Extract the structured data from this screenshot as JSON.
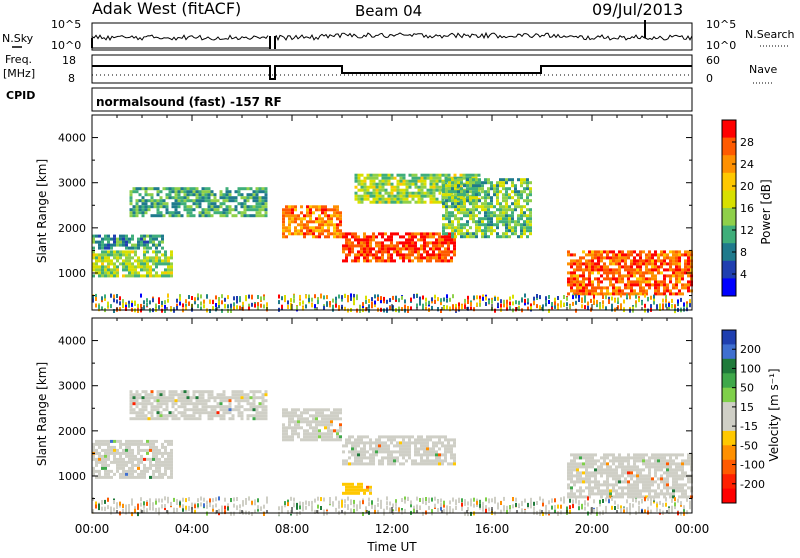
{
  "header": {
    "station": "Adak West (fitACF)",
    "beam": "Beam 04",
    "date": "09/Jul/2013",
    "cpid_label": "CPID",
    "program": "normalsound (fast) -157 RF"
  },
  "strips": {
    "nsky_label": "N.Sky",
    "nsky_ticks": [
      "10^5",
      "10^0"
    ],
    "nsearch_label": "N.Search",
    "nsearch_ticks": [
      "10^5",
      "10^0"
    ],
    "freq_label_1": "Freq.",
    "freq_label_2": "[MHz]",
    "freq_ticks": [
      "18",
      "8"
    ],
    "nave_label": "Nave",
    "nave_ticks": [
      "60",
      "0"
    ]
  },
  "axes": {
    "ylabel": "Slant Range [km]",
    "xlabel": "Time UT",
    "y_ticks": [
      "4000",
      "3000",
      "2000",
      "1000"
    ],
    "x_ticks": [
      "00:00",
      "04:00",
      "08:00",
      "12:00",
      "16:00",
      "20:00",
      "00:00"
    ]
  },
  "colorbars": {
    "power": {
      "label": "Power [dB]",
      "ticks": [
        "28",
        "24",
        "20",
        "16",
        "12",
        "8",
        "4"
      ],
      "colors": [
        "#ff0000",
        "#ff5a00",
        "#ff9000",
        "#ffc800",
        "#d8e000",
        "#8fd04a",
        "#3fae7a",
        "#1f7a8c",
        "#1f3fb0",
        "#0000ff"
      ]
    },
    "velocity": {
      "label": "Velocity [m s⁻¹]",
      "ticks": [
        "200",
        "100",
        "50",
        "15",
        "-15",
        "-50",
        "-100",
        "-200"
      ],
      "colors": [
        "#1f3fb0",
        "#3f6fd0",
        "#1f7a3a",
        "#3fa84a",
        "#7fd04a",
        "#cfcfc6",
        "#cfcfc6",
        "#ffc800",
        "#ff9000",
        "#ff5a00",
        "#ff2000",
        "#ff0000"
      ]
    }
  },
  "chart_data": [
    {
      "type": "heatmap",
      "title": "Power",
      "xlabel": "Time UT",
      "ylabel": "Slant Range [km]",
      "xlim": [
        "00:00",
        "24:00"
      ],
      "ylim": [
        180,
        4500
      ],
      "colorbar_label": "Power [dB]",
      "colorbar_range": [
        0,
        30
      ],
      "regions": [
        {
          "t0": 0.0,
          "t1": 3.2,
          "r0": 950,
          "r1": 1500,
          "power": 14
        },
        {
          "t0": 0.0,
          "t1": 2.8,
          "r0": 1550,
          "r1": 1850,
          "power": 8
        },
        {
          "t0": 1.5,
          "t1": 7.0,
          "r0": 2300,
          "r1": 2900,
          "power": 10
        },
        {
          "t0": 7.6,
          "t1": 10.0,
          "r0": 1800,
          "r1": 2500,
          "power": 24
        },
        {
          "t0": 10.0,
          "t1": 14.5,
          "r0": 1250,
          "r1": 1900,
          "power": 28
        },
        {
          "t0": 10.5,
          "t1": 15.5,
          "r0": 2600,
          "r1": 3200,
          "power": 14
        },
        {
          "t0": 14.0,
          "t1": 17.5,
          "r0": 1800,
          "r1": 3100,
          "power": 12
        },
        {
          "t0": 19.0,
          "t1": 24.0,
          "r0": 550,
          "r1": 1500,
          "power": 26
        }
      ]
    },
    {
      "type": "heatmap",
      "title": "Velocity",
      "xlabel": "Time UT",
      "ylabel": "Slant Range [km]",
      "xlim": [
        "00:00",
        "24:00"
      ],
      "ylim": [
        180,
        4500
      ],
      "colorbar_label": "Velocity [m s⁻¹]",
      "colorbar_range": [
        -250,
        250
      ],
      "regions": [
        {
          "t0": 0.0,
          "t1": 3.2,
          "r0": 950,
          "r1": 1800,
          "velocity": 0
        },
        {
          "t0": 1.5,
          "t1": 7.0,
          "r0": 2300,
          "r1": 2900,
          "velocity": 0
        },
        {
          "t0": 7.6,
          "t1": 10.0,
          "r0": 1800,
          "r1": 2500,
          "velocity": -20
        },
        {
          "t0": 10.0,
          "t1": 14.5,
          "r0": 1250,
          "r1": 1900,
          "velocity": -30
        },
        {
          "t0": 10.0,
          "t1": 11.2,
          "r0": 650,
          "r1": 850,
          "velocity": -80
        },
        {
          "t0": 19.0,
          "t1": 24.0,
          "r0": 550,
          "r1": 1500,
          "velocity": 0
        }
      ]
    }
  ]
}
